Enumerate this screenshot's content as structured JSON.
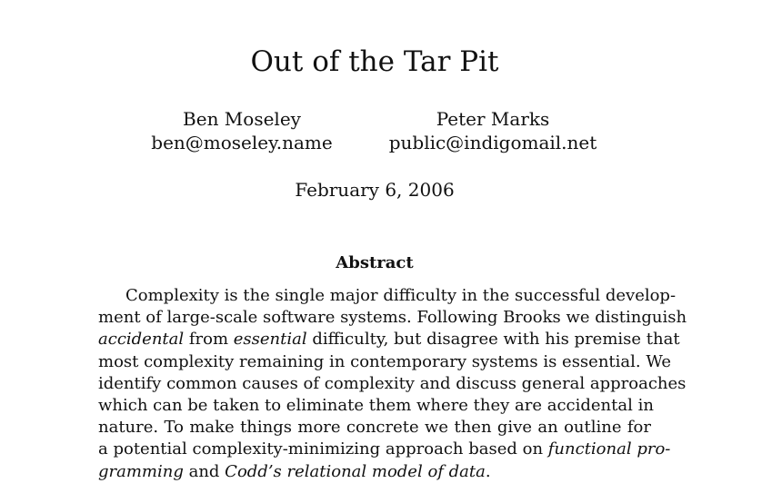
{
  "title": "Out of the Tar Pit",
  "authors": [
    {
      "name": "Ben Moseley",
      "email": "ben@moseley.name"
    },
    {
      "name": "Peter Marks",
      "email": "public@indigomail.net"
    }
  ],
  "date": "February 6, 2006",
  "abstract": {
    "heading": "Abstract",
    "lines": [
      [
        {
          "text": "Complexity is the single major difficulty in the successful develop-"
        }
      ],
      [
        {
          "text": "ment of large-scale software systems. Following Brooks we distinguish"
        }
      ],
      [
        {
          "text": "accidental",
          "italic": true
        },
        {
          "text": " from "
        },
        {
          "text": "essential",
          "italic": true
        },
        {
          "text": " difficulty, but disagree with his premise that"
        }
      ],
      [
        {
          "text": "most complexity remaining in contemporary systems is essential. We"
        }
      ],
      [
        {
          "text": "identify common causes of complexity and discuss general approaches"
        }
      ],
      [
        {
          "text": "which can be taken to eliminate them where they are accidental in"
        }
      ],
      [
        {
          "text": "nature. To make things more concrete we then give an outline for"
        }
      ],
      [
        {
          "text": "a potential complexity-minimizing approach based on "
        },
        {
          "text": "functional pro-",
          "italic": true
        }
      ],
      [
        {
          "text": "gramming",
          "italic": true
        },
        {
          "text": " and "
        },
        {
          "text": "Codd’s relational model of data",
          "italic": true
        },
        {
          "text": "."
        }
      ]
    ]
  }
}
